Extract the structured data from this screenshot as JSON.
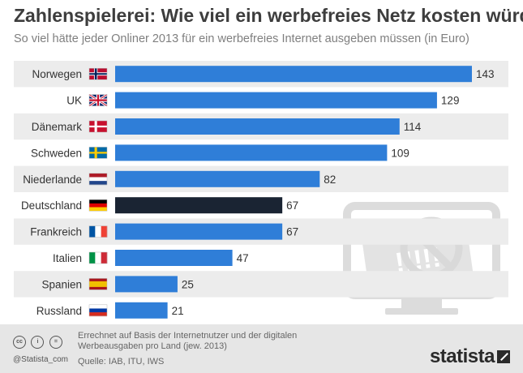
{
  "chart_data": {
    "type": "bar",
    "orientation": "horizontal",
    "title": "Zahlenspielerei: Wie viel ein werbefreies Netz kosten würde",
    "subtitle": "So viel hätte jeder Onliner 2013 für ein werbefreies Internet ausgeben müssen (in Euro)",
    "categories": [
      "Norwegen",
      "UK",
      "Dänemark",
      "Schweden",
      "Niederlande",
      "Deutschland",
      "Frankreich",
      "Italien",
      "Spanien",
      "Russland"
    ],
    "values": [
      143,
      129,
      114,
      109,
      82,
      67,
      67,
      47,
      25,
      21
    ],
    "highlight": "Deutschland",
    "xlim": [
      0,
      143
    ],
    "grid": false,
    "legend": "none"
  },
  "colors": {
    "bar": "#2f7ed8",
    "highlight": "#1a2433",
    "row_band": "#ececec",
    "label": "#333333",
    "title": "#3d3d3d"
  },
  "flags": [
    "norway-flag-icon",
    "uk-flag-icon",
    "denmark-flag-icon",
    "sweden-flag-icon",
    "netherlands-flag-icon",
    "germany-flag-icon",
    "france-flag-icon",
    "italy-flag-icon",
    "spain-flag-icon",
    "russia-flag-icon"
  ],
  "illustration": "monitor-with-prohibited-ad-icon",
  "footer": {
    "handle": "@Statista_com",
    "note": "Errechnet auf Basis der Internetnutzer und der digitalen Werbeausgaben pro Land (jew. 2013)",
    "source": "Quelle: IAB, ITU, IWS",
    "brand": "statista"
  }
}
